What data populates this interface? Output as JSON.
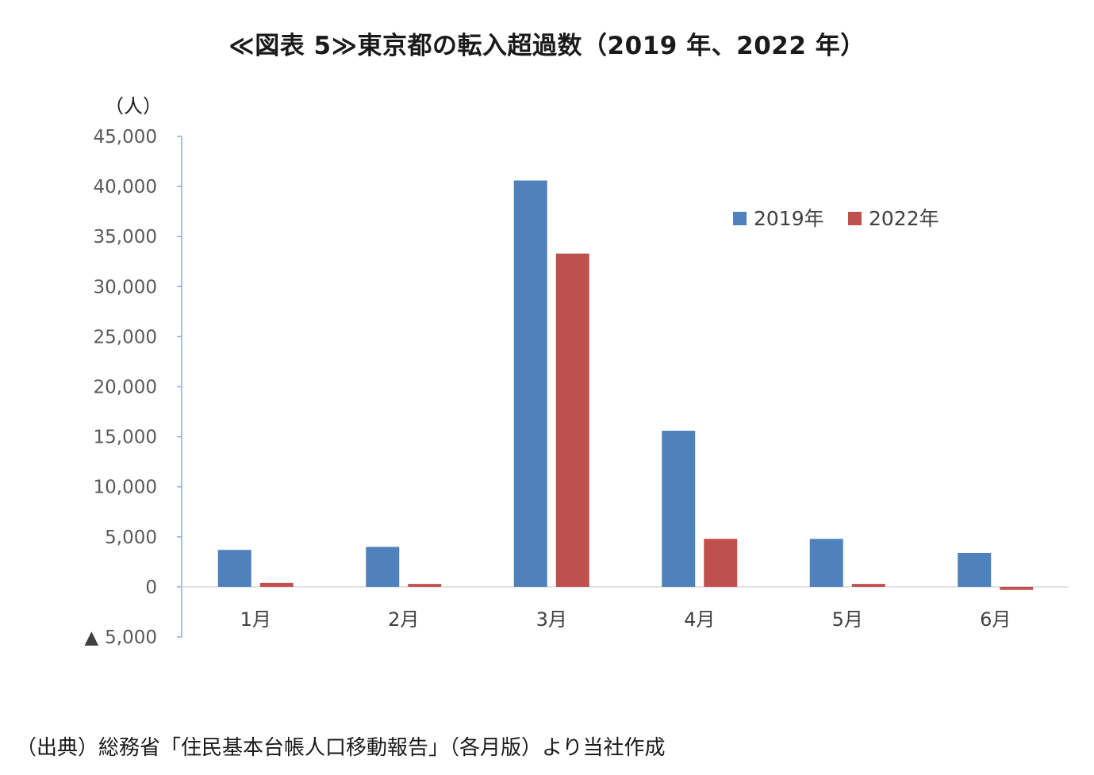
{
  "chart_data": {
    "type": "bar",
    "title": "≪図表 5≫東京都の転入超過数（2019 年、2022 年）",
    "ylabel": "（人）",
    "xlabel": "",
    "categories": [
      "1月",
      "2月",
      "3月",
      "4月",
      "5月",
      "6月"
    ],
    "series": [
      {
        "name": "2019年",
        "color": "#4f81bd",
        "values": [
          3700,
          4000,
          40600,
          15600,
          4800,
          3400
        ]
      },
      {
        "name": "2022年",
        "color": "#c0504d",
        "values": [
          400,
          300,
          33300,
          4800,
          300,
          -300
        ]
      }
    ],
    "ylim": [
      -5000,
      45000
    ],
    "yticks": [
      -5000,
      0,
      5000,
      10000,
      15000,
      20000,
      25000,
      30000,
      35000,
      40000,
      45000
    ],
    "ytick_labels": [
      "▲ 5,000",
      "0",
      "5,000",
      "10,000",
      "15,000",
      "20,000",
      "25,000",
      "30,000",
      "35,000",
      "40,000",
      "45,000"
    ],
    "legend_position": "top-right",
    "grid": false
  },
  "footnote": "（出典）総務省「住民基本台帳人口移動報告」（各月版）より当社作成"
}
